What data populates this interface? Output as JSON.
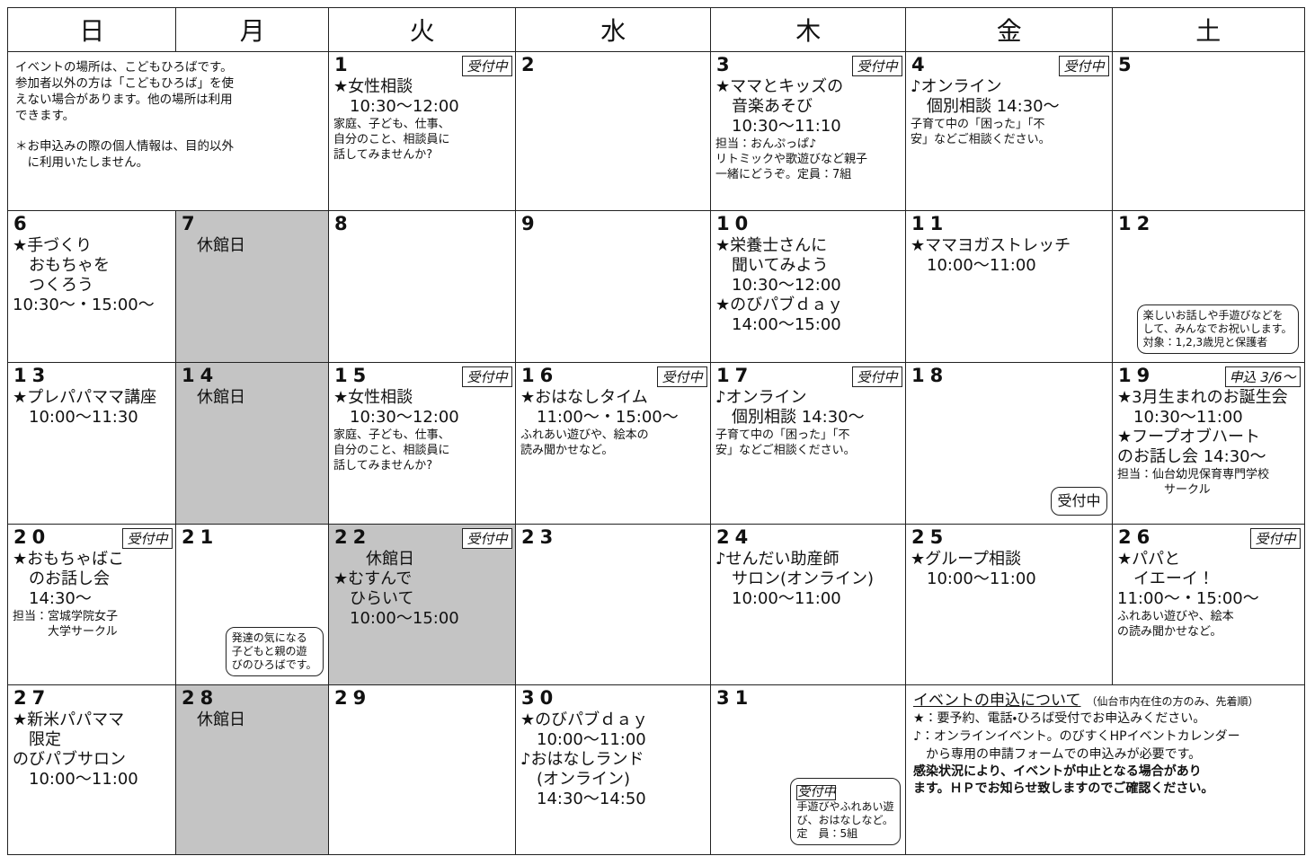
{
  "weekdays": [
    "日",
    "月",
    "火",
    "水",
    "木",
    "金",
    "土"
  ],
  "intro": {
    "lines": [
      "イベントの場所は、こどもひろばです。",
      "参加者以外の方は「こどもひろば」を使",
      "えない場合があります。他の場所は利用",
      "できます。"
    ],
    "privacy": [
      "＊お申込みの際の個人情報は、目的以外",
      "　に利用いたしません。"
    ]
  },
  "weeks": [
    [
      {
        "day": 1,
        "badge": "受付中",
        "lines": [
          "★女性相談",
          "　10:30～12:00"
        ],
        "notes": [
          "家庭、子ども、仕事、",
          "自分のこと、相談員に",
          "話してみませんか?"
        ]
      },
      {
        "day": 2
      },
      {
        "day": 3,
        "badge": "受付中",
        "lines": [
          "★ママとキッズの",
          "　音楽あそび",
          "　10:30～11:10"
        ],
        "notes": [
          "担当：おんぷっぱ♪",
          "リトミックや歌遊びなど親子",
          "一緒にどうぞ。定員：7組"
        ]
      },
      {
        "day": 4,
        "badge": "受付中",
        "lines": [
          "♪オンライン",
          "　個別相談 14:30～"
        ],
        "notes": [
          "子育て中の「困った」「不",
          "安」などご相談ください。"
        ]
      },
      {
        "day": 5
      }
    ],
    [
      {
        "day": 6,
        "lines": [
          "★手づくり",
          "　おもちゃを",
          "　つくろう",
          "10:30～・15:00～"
        ]
      },
      {
        "day": 7,
        "closed": true,
        "lines": [
          "　休館日"
        ]
      },
      {
        "day": 8
      },
      {
        "day": 9
      },
      {
        "day": 10,
        "lines": [
          "★栄養士さんに",
          "　聞いてみよう",
          "　10:30～12:00",
          "★のびパブｄａｙ",
          "　14:00～15:00"
        ]
      },
      {
        "day": 11,
        "lines": [
          "★ママヨガストレッチ",
          "　10:00～11:00"
        ]
      },
      {
        "day": 12,
        "bubble": {
          "lines": [
            "楽しいお話しや手遊びなどを",
            "して、みんなでお祝いします。",
            "対象：1,2,3歳児と保護者"
          ]
        }
      }
    ],
    [
      {
        "day": 13,
        "lines": [
          "★プレパパママ講座",
          "　10:00～11:30"
        ]
      },
      {
        "day": 14,
        "closed": true,
        "lines": [
          "　休館日"
        ]
      },
      {
        "day": 15,
        "badge": "受付中",
        "lines": [
          "★女性相談",
          "　10:30～12:00"
        ],
        "notes": [
          "家庭、子ども、仕事、",
          "自分のこと、相談員に",
          "話してみませんか?"
        ]
      },
      {
        "day": 16,
        "badge": "受付中",
        "lines": [
          "★おはなしタイム",
          "　11:00～・15:00～"
        ],
        "notes": [
          "ふれあい遊びや、絵本の",
          "読み聞かせなど。"
        ]
      },
      {
        "day": 17,
        "badge": "受付中",
        "lines": [
          "♪オンライン",
          "　個別相談 14:30～"
        ],
        "notes": [
          "子育て中の「困った」「不",
          "安」などご相談ください。"
        ]
      },
      {
        "day": 18,
        "bubble": {
          "lines": [
            "受付中"
          ]
        }
      },
      {
        "day": 19,
        "badge": "申込 3/6～",
        "lines": [
          "★3月生まれのお誕生会",
          "　10:30～11:00",
          "★フープオブハート",
          "のお話し会 14:30～"
        ],
        "notes": [
          "担当：仙台幼児保育専門学校",
          "　　　　サークル"
        ]
      }
    ],
    [
      {
        "day": 20,
        "badge": "受付中",
        "lines": [
          "★おもちゃばこ",
          "　のお話し会",
          "　14:30～"
        ],
        "notes": [
          "担当：宮城学院女子",
          "　　　大学サークル"
        ]
      },
      {
        "day": 21,
        "bubble": {
          "lines": [
            "発達の気になる",
            "子どもと親の遊",
            "びのひろばです。"
          ]
        }
      },
      {
        "day": 22,
        "closed": true,
        "badge": "受付中",
        "lines": [
          "　　休館日",
          "★むすんで",
          "　ひらいて",
          "　10:00～15:00"
        ]
      },
      {
        "day": 23
      },
      {
        "day": 24,
        "lines": [
          "♪せんだい助産師",
          "　サロン(オンライン)",
          "　10:00～11:00"
        ]
      },
      {
        "day": 25,
        "lines": [
          "★グループ相談",
          "　10:00～11:00"
        ]
      },
      {
        "day": 26,
        "badge": "受付中",
        "lines": [
          "★パパと",
          "　イエーイ！",
          "11:00～・15:00～"
        ],
        "notes": [
          "ふれあい遊びや、絵本",
          "の読み聞かせなど。"
        ]
      }
    ],
    [
      {
        "day": 27,
        "lines": [
          "★新米パパママ",
          "　限定",
          "のびパブサロン",
          "　10:00～11:00"
        ]
      },
      {
        "day": 28,
        "closed": true,
        "lines": [
          "　休館日"
        ]
      },
      {
        "day": 29
      },
      {
        "day": 30,
        "lines": [
          "★のびパブｄａｙ",
          "　10:00～11:00",
          "♪おはなしランド",
          "　(オンライン)",
          "　14:30～14:50"
        ]
      },
      {
        "day": 31,
        "bubble": {
          "badge": "受付中",
          "lines": [
            "手遊びやふれあい遊",
            "び、おはなしなど。",
            "定　員：5組"
          ]
        }
      }
    ]
  ],
  "event_note": {
    "title": "イベントの申込について",
    "subtitle": "（仙台市内在住の方のみ、先着順）",
    "lines": [
      "★：要予約、電話・ひろば受付でお申込みください。",
      "♪：オンラインイベント。のびすくHPイベントカレンダー",
      "　から専用の申請フォームでの申込みが必要です。"
    ],
    "warning": [
      "感染状況により、イベントが中止となる場合があり",
      "ます。ＨＰでお知らせ致しますのでご確認ください。"
    ]
  }
}
